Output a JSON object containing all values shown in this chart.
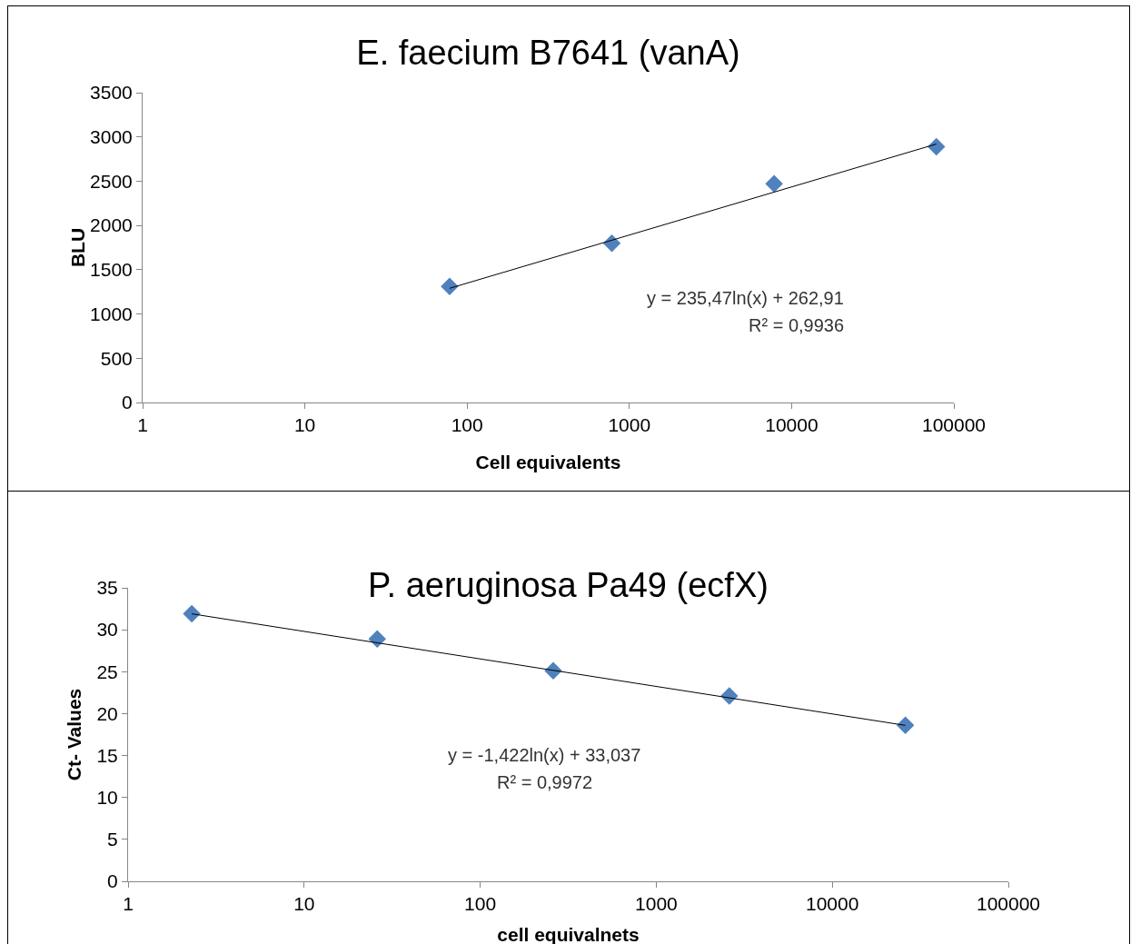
{
  "chart_data": [
    {
      "type": "scatter",
      "title": "E. faecium B7641 (vanA)",
      "xlabel": "Cell equivalents",
      "ylabel": "BLU",
      "log": "x",
      "grid": false,
      "marker": "diamond",
      "xlim": [
        1,
        100000
      ],
      "xticks": [
        1,
        10,
        100,
        1000,
        10000,
        100000
      ],
      "ylim": [
        0,
        3500
      ],
      "yticks": [
        0,
        500,
        1000,
        1500,
        2000,
        2500,
        3000,
        3500
      ],
      "series": [
        {
          "color": "#4f81bd",
          "x": [
            78,
            780,
            7800,
            78000
          ],
          "values": [
            1310,
            1800,
            2470,
            2890
          ]
        },
        {
          "type": "line",
          "color": "#000000",
          "marker": "none",
          "line_style": "solid",
          "x": [
            78,
            78000
          ],
          "values": [
            1290,
            2920
          ]
        }
      ],
      "annotations": [
        "y = 235,47ln(x) + 262,91",
        "R² = 0,9936"
      ]
    },
    {
      "type": "scatter",
      "title": "P. aeruginosa Pa49 (ecfX)",
      "xlabel": "cell equivalnets",
      "ylabel": "Ct- Values",
      "log": "x",
      "grid": false,
      "marker": "diamond",
      "xlim": [
        1,
        100000
      ],
      "xticks": [
        1,
        10,
        100,
        1000,
        10000,
        100000
      ],
      "ylim": [
        0,
        35
      ],
      "yticks": [
        0,
        5,
        10,
        15,
        20,
        25,
        30,
        35
      ],
      "series": [
        {
          "color": "#4f81bd",
          "x": [
            2.3,
            26,
            260,
            2600,
            26000
          ],
          "values": [
            31.9,
            28.9,
            25.1,
            22.1,
            18.6
          ]
        },
        {
          "type": "line",
          "color": "#000000",
          "marker": "none",
          "line_style": "solid",
          "x": [
            2.3,
            26000
          ],
          "values": [
            31.9,
            18.6
          ]
        }
      ],
      "annotations": [
        "y = -1,422ln(x) + 33,037",
        "R² = 0,9972"
      ]
    }
  ]
}
